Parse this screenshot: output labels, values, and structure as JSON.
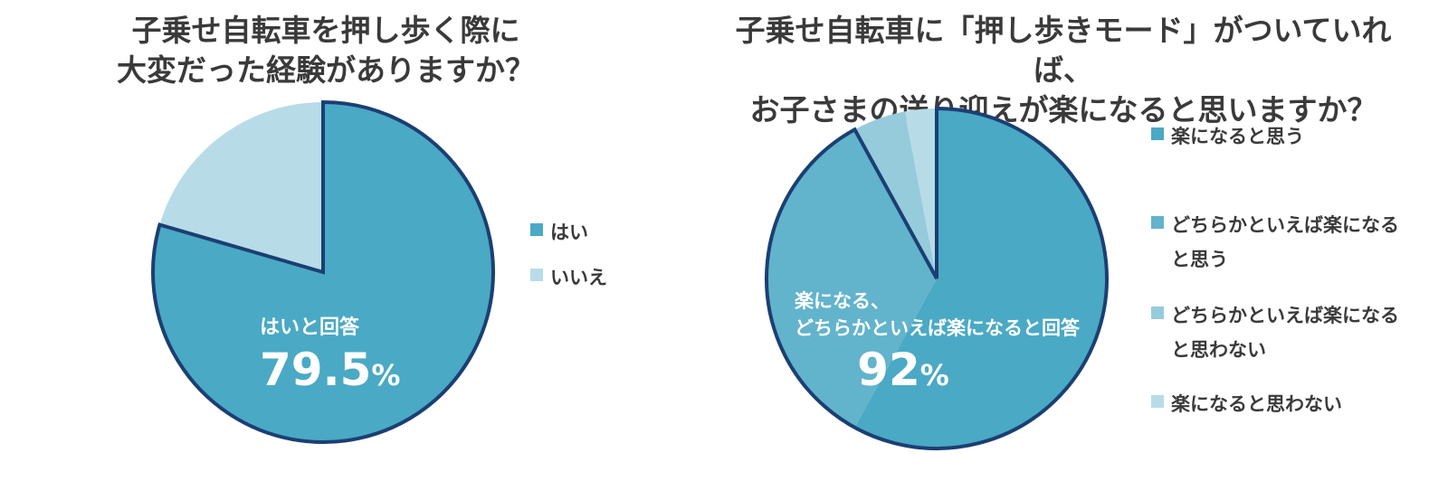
{
  "left_chart": {
    "title_line1": "子乗せ自転車を押し歩く際に",
    "title_line2": "大変だった経験がありますか？",
    "legend": [
      {
        "label": "はい",
        "color": "#4aa9c4"
      },
      {
        "label": "いいえ",
        "color": "#b7dce8"
      }
    ],
    "annotation_label": "はいと回答",
    "annotation_value": "79.5",
    "annotation_unit": "%"
  },
  "right_chart": {
    "title_line1": "子乗せ自転車に「押し歩きモード」がついていれば、",
    "title_line2": "お子さまの送り迎えが楽になると思いますか？",
    "legend": [
      {
        "label_line1": "楽になると思う",
        "label_line2": "",
        "color": "#4aa9c4"
      },
      {
        "label_line1": "どちらかといえば楽になる",
        "label_line2": "と思う",
        "color": "#62b3cc"
      },
      {
        "label_line1": "どちらかといえば楽になる",
        "label_line2": "と思わない",
        "color": "#96cbdc"
      },
      {
        "label_line1": "楽になると思わない",
        "label_line2": "",
        "color": "#b7dce8"
      }
    ],
    "annotation_line1": "楽になる、",
    "annotation_line2": "どちらかといえば楽になると回答",
    "annotation_value": "92",
    "annotation_unit": "%"
  },
  "colors": {
    "outline": "#1b3f73",
    "title_text": "#3a3a3a",
    "annotation_text": "#ffffff"
  },
  "chart_data": [
    {
      "type": "pie",
      "title": "子乗せ自転車を押し歩く際に大変だった経験がありますか？",
      "categories": [
        "はい",
        "いいえ"
      ],
      "values": [
        79.5,
        20.5
      ],
      "colors": [
        "#4aa9c4",
        "#b7dce8"
      ],
      "legend_position": "right",
      "annotations": [
        "はいと回答 79.5%"
      ],
      "highlighted": [
        "はい"
      ]
    },
    {
      "type": "pie",
      "title": "子乗せ自転車に「押し歩きモード」がついていれば、お子さまの送り迎えが楽になると思いますか？",
      "categories": [
        "楽になると思う",
        "どちらかといえば楽になると思う",
        "どちらかといえば楽になると思わない",
        "楽になると思わない"
      ],
      "values": [
        58,
        34,
        5,
        3
      ],
      "colors": [
        "#4aa9c4",
        "#62b3cc",
        "#96cbdc",
        "#b7dce8"
      ],
      "legend_position": "right",
      "annotations": [
        "楽になる、どちらかといえば楽になると回答 92%"
      ],
      "highlighted": [
        "楽になると思う",
        "どちらかといえば楽になると思う"
      ]
    }
  ]
}
